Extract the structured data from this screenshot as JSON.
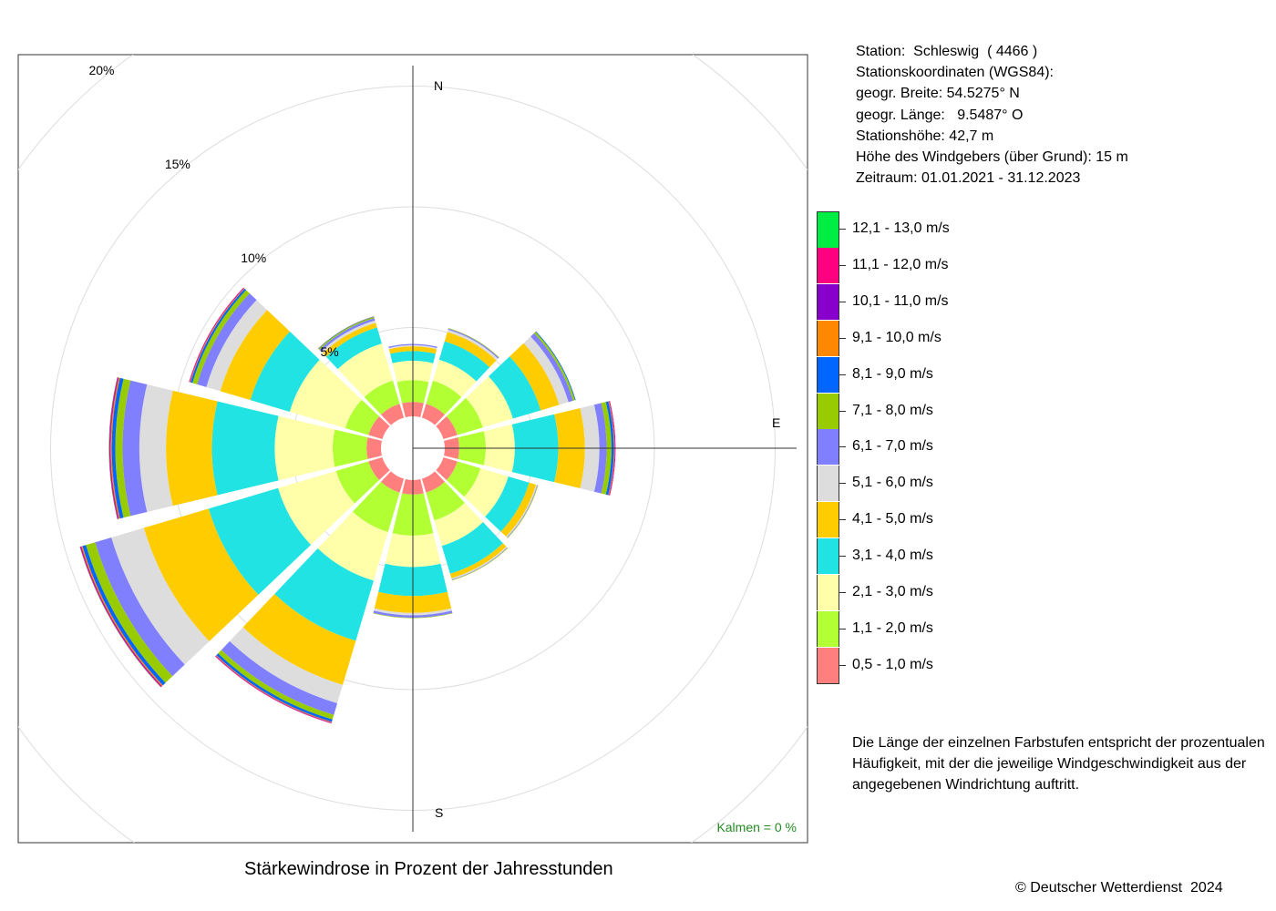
{
  "title": "Stärkewindrose in Prozent der Jahresstunden",
  "copyright": "© Deutscher Wetterdienst  2024",
  "station_info": [
    "Station:  Schleswig  ( 4466 )",
    "Stationskoordinaten (WGS84):",
    "geogr. Breite: 54.5275° N",
    "geogr. Länge:   9.5487° O",
    "Stationshöhe: 42,7 m",
    "Höhe des Windgebers (über Grund): 15 m",
    "Zeitraum: 01.01.2021 - 31.12.2023"
  ],
  "note_lines": [
    "Die Länge der einzelnen Farbstufen entspricht der prozentualen",
    "Häufigkeit, mit der die jeweilige Windgeschwindigkeit aus der",
    "angegebenen Windrichtung auftritt."
  ],
  "calm_label": "Kalmen  =  0 %",
  "calm_color": "#228B22",
  "legend": [
    {
      "label": "12,1 - 13,0 m/s",
      "color": "#00EE44"
    },
    {
      "label": "11,1 - 12,0 m/s",
      "color": "#FF0080"
    },
    {
      "label": "10,1 - 11,0 m/s",
      "color": "#8800CC"
    },
    {
      "label": "9,1 - 10,0 m/s",
      "color": "#FF8800"
    },
    {
      "label": "8,1 - 9,0 m/s",
      "color": "#0066FF"
    },
    {
      "label": "7,1 - 8,0 m/s",
      "color": "#99CC00"
    },
    {
      "label": "6,1 - 7,0 m/s",
      "color": "#8080FF"
    },
    {
      "label": "5,1 - 6,0 m/s",
      "color": "#DDDDDD"
    },
    {
      "label": "4,1 - 5,0 m/s",
      "color": "#FFCC00"
    },
    {
      "label": "3,1 - 4,0 m/s",
      "color": "#22E3E3"
    },
    {
      "label": "2,1 - 3,0 m/s",
      "color": "#FFFFAA"
    },
    {
      "label": "1,1 - 2,0 m/s",
      "color": "#B2FF33"
    },
    {
      "label": "0,5 - 1,0 m/s",
      "color": "#FF7F7F"
    }
  ],
  "compass": {
    "north": "N",
    "east": "E",
    "south": "S"
  },
  "chart_data": {
    "type": "polar-stacked-bar",
    "title": "Stärkewindrose in Prozent der Jahresstunden",
    "radial_unit": "%",
    "rings": [
      5,
      10,
      15,
      20
    ],
    "ring_labels": [
      "5%",
      "10%",
      "15%",
      "20%"
    ],
    "calm_percent": 0,
    "directions_deg": [
      0,
      30,
      60,
      90,
      120,
      150,
      180,
      210,
      240,
      270,
      300,
      330
    ],
    "series": [
      {
        "name": "0,5 - 1,0 m/s",
        "color": "#FF7F7F",
        "values": [
          0.6,
          0.6,
          0.6,
          0.6,
          0.6,
          0.6,
          0.6,
          0.6,
          0.6,
          0.6,
          0.6,
          0.6
        ]
      },
      {
        "name": "1,1 - 2,0 m/s",
        "color": "#B2FF33",
        "values": [
          0.9,
          1.0,
          1.1,
          1.1,
          1.0,
          1.2,
          1.7,
          1.7,
          1.4,
          1.4,
          1.0,
          1.0
        ]
      },
      {
        "name": "2,1 - 3,0 m/s",
        "color": "#FFFFAA",
        "values": [
          0.8,
          0.9,
          1.3,
          1.2,
          1.2,
          1.1,
          1.3,
          2.1,
          2.5,
          2.4,
          2.4,
          1.6
        ]
      },
      {
        "name": "3,1 - 4,0 m/s",
        "color": "#22E3E3",
        "values": [
          0.4,
          0.8,
          1.2,
          1.8,
          0.9,
          1.2,
          1.2,
          2.6,
          3.0,
          2.6,
          1.7,
          0.7
        ]
      },
      {
        "name": "4,1 - 5,0 m/s",
        "color": "#FFCC00",
        "values": [
          0.2,
          0.4,
          0.8,
          1.1,
          0.3,
          0.2,
          0.7,
          1.9,
          2.8,
          1.9,
          1.3,
          0.2
        ]
      },
      {
        "name": "5,1 - 6,0 m/s",
        "color": "#DDDDDD",
        "values": [
          0.05,
          0.1,
          0.4,
          0.6,
          0.05,
          0.05,
          0.1,
          0.8,
          1.4,
          1.1,
          0.6,
          0.1
        ]
      },
      {
        "name": "6,1 - 7,0 m/s",
        "color": "#8080FF",
        "values": [
          0.05,
          0.05,
          0.2,
          0.3,
          0.02,
          0.02,
          0.1,
          0.5,
          0.7,
          0.7,
          0.4,
          0.1
        ]
      },
      {
        "name": "7,1 - 8,0 m/s",
        "color": "#99CC00",
        "values": [
          0,
          0.02,
          0.08,
          0.2,
          0.02,
          0.02,
          0.02,
          0.2,
          0.4,
          0.3,
          0.2,
          0.05
        ]
      },
      {
        "name": "8,1 - 9,0 m/s",
        "color": "#0066FF",
        "values": [
          0,
          0,
          0.03,
          0.1,
          0,
          0,
          0,
          0.1,
          0.15,
          0.15,
          0.08,
          0.02
        ]
      },
      {
        "name": "9,1 - 10,0 m/s",
        "color": "#FF8800",
        "values": [
          0,
          0,
          0,
          0.03,
          0,
          0,
          0,
          0.03,
          0.05,
          0.05,
          0.03,
          0.01
        ]
      },
      {
        "name": "10,1 - 11,0 m/s",
        "color": "#8800CC",
        "values": [
          0,
          0,
          0,
          0.02,
          0,
          0,
          0,
          0.02,
          0.03,
          0.03,
          0.02,
          0
        ]
      },
      {
        "name": "11,1 - 12,0 m/s",
        "color": "#FF0080",
        "values": [
          0,
          0,
          0,
          0.02,
          0,
          0,
          0,
          0.02,
          0.03,
          0.03,
          0.02,
          0
        ]
      },
      {
        "name": "12,1 - 13,0 m/s",
        "color": "#00EE44",
        "values": [
          0,
          0,
          0,
          0,
          0,
          0,
          0,
          0,
          0.01,
          0.01,
          0,
          0
        ]
      }
    ]
  }
}
